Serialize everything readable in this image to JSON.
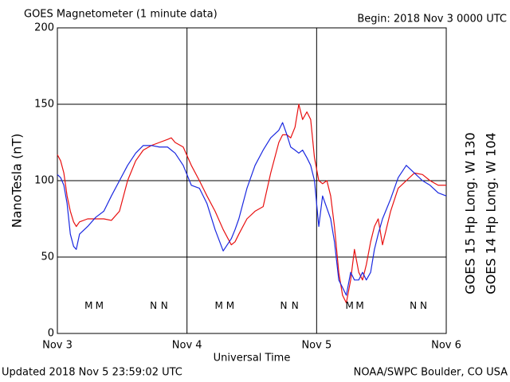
{
  "chart_data": {
    "type": "line",
    "title": "GOES Magnetometer (1 minute data)",
    "subtitle": "Begin:  2018 Nov 3 0000 UTC",
    "x_label": "Universal Time",
    "y_label": "NanoTesla (nT)",
    "footer_left": "Updated 2018 Nov  5 23:59:02 UTC",
    "footer_right": "NOAA/SWPC Boulder, CO USA",
    "xlim": [
      0,
      72
    ],
    "xticks": [
      {
        "value": 0,
        "label": "Nov 3"
      },
      {
        "value": 24,
        "label": "Nov 4"
      },
      {
        "value": 48,
        "label": "Nov 5"
      },
      {
        "value": 72,
        "label": "Nov 6"
      }
    ],
    "ylim": [
      0,
      200
    ],
    "yticks": [
      0,
      50,
      100,
      150,
      200
    ],
    "grid": true,
    "x": [
      0,
      0.6,
      1.2,
      1.8,
      2.4,
      3.0,
      3.5,
      4.1,
      5.6,
      7.1,
      8.6,
      10.0,
      11.5,
      13.0,
      14.5,
      15.9,
      17.4,
      18.9,
      20.4,
      21.1,
      21.8,
      23.3,
      24.8,
      26.3,
      27.7,
      29.2,
      30.7,
      32.2,
      32.9,
      33.6,
      35.1,
      36.6,
      38.1,
      39.5,
      41.0,
      41.7,
      42.5,
      43.2,
      44.0,
      44.7,
      45.4,
      46.2,
      46.9,
      47.6,
      48.4,
      49.1,
      49.9,
      50.6,
      51.3,
      52.1,
      52.8,
      53.5,
      54.3,
      55.0,
      55.8,
      56.5,
      57.2,
      58.0,
      58.7,
      59.4,
      60.2,
      61.7,
      63.1,
      64.6,
      66.1,
      67.6,
      69.0,
      70.5,
      72.0
    ],
    "series": [
      {
        "name": "GOES 15 Hp  Long. W 130",
        "color": "#e81010",
        "values": [
          117,
          113,
          105,
          90,
          80,
          73,
          70,
          73,
          75,
          75,
          75,
          74,
          80,
          100,
          113,
          120,
          123,
          125,
          127,
          128,
          125,
          122,
          110,
          100,
          90,
          80,
          68,
          58,
          60,
          65,
          75,
          80,
          83,
          105,
          125,
          130,
          130,
          128,
          135,
          150,
          140,
          145,
          140,
          115,
          100,
          98,
          100,
          90,
          70,
          40,
          25,
          20,
          35,
          55,
          40,
          35,
          45,
          60,
          70,
          75,
          58,
          80,
          95,
          100,
          105,
          104,
          100,
          97,
          97
        ]
      },
      {
        "name": "GOES 14 Hp  Long. W 104",
        "color": "#1a28e0",
        "values": [
          104,
          102,
          97,
          85,
          65,
          57,
          55,
          65,
          70,
          76,
          80,
          90,
          100,
          110,
          118,
          123,
          123,
          122,
          122,
          120,
          118,
          110,
          97,
          95,
          85,
          68,
          54,
          62,
          68,
          75,
          95,
          110,
          120,
          128,
          133,
          138,
          130,
          122,
          120,
          118,
          120,
          115,
          110,
          100,
          70,
          90,
          82,
          75,
          60,
          35,
          30,
          25,
          40,
          35,
          35,
          40,
          35,
          40,
          55,
          65,
          75,
          88,
          102,
          110,
          105,
          100,
          97,
          92,
          90
        ]
      }
    ],
    "annotations": [
      {
        "text": "M",
        "x": 5.8,
        "y": 18,
        "color": "#1a28e0"
      },
      {
        "text": "M",
        "x": 7.8,
        "y": 18,
        "color": "#e81010"
      },
      {
        "text": "N",
        "x": 17.8,
        "y": 18,
        "color": "#1a28e0"
      },
      {
        "text": "N",
        "x": 19.8,
        "y": 18,
        "color": "#e81010"
      },
      {
        "text": "M",
        "x": 29.9,
        "y": 18,
        "color": "#1a28e0"
      },
      {
        "text": "M",
        "x": 32.0,
        "y": 18,
        "color": "#e81010"
      },
      {
        "text": "N",
        "x": 41.9,
        "y": 18,
        "color": "#1a28e0"
      },
      {
        "text": "N",
        "x": 44.0,
        "y": 18,
        "color": "#e81010"
      },
      {
        "text": "M",
        "x": 54.1,
        "y": 18,
        "color": "#1a28e0"
      },
      {
        "text": "M",
        "x": 56.0,
        "y": 18,
        "color": "#e81010"
      },
      {
        "text": "N",
        "x": 65.9,
        "y": 18,
        "color": "#1a28e0"
      },
      {
        "text": "N",
        "x": 67.8,
        "y": 18,
        "color": "#e81010"
      }
    ]
  }
}
